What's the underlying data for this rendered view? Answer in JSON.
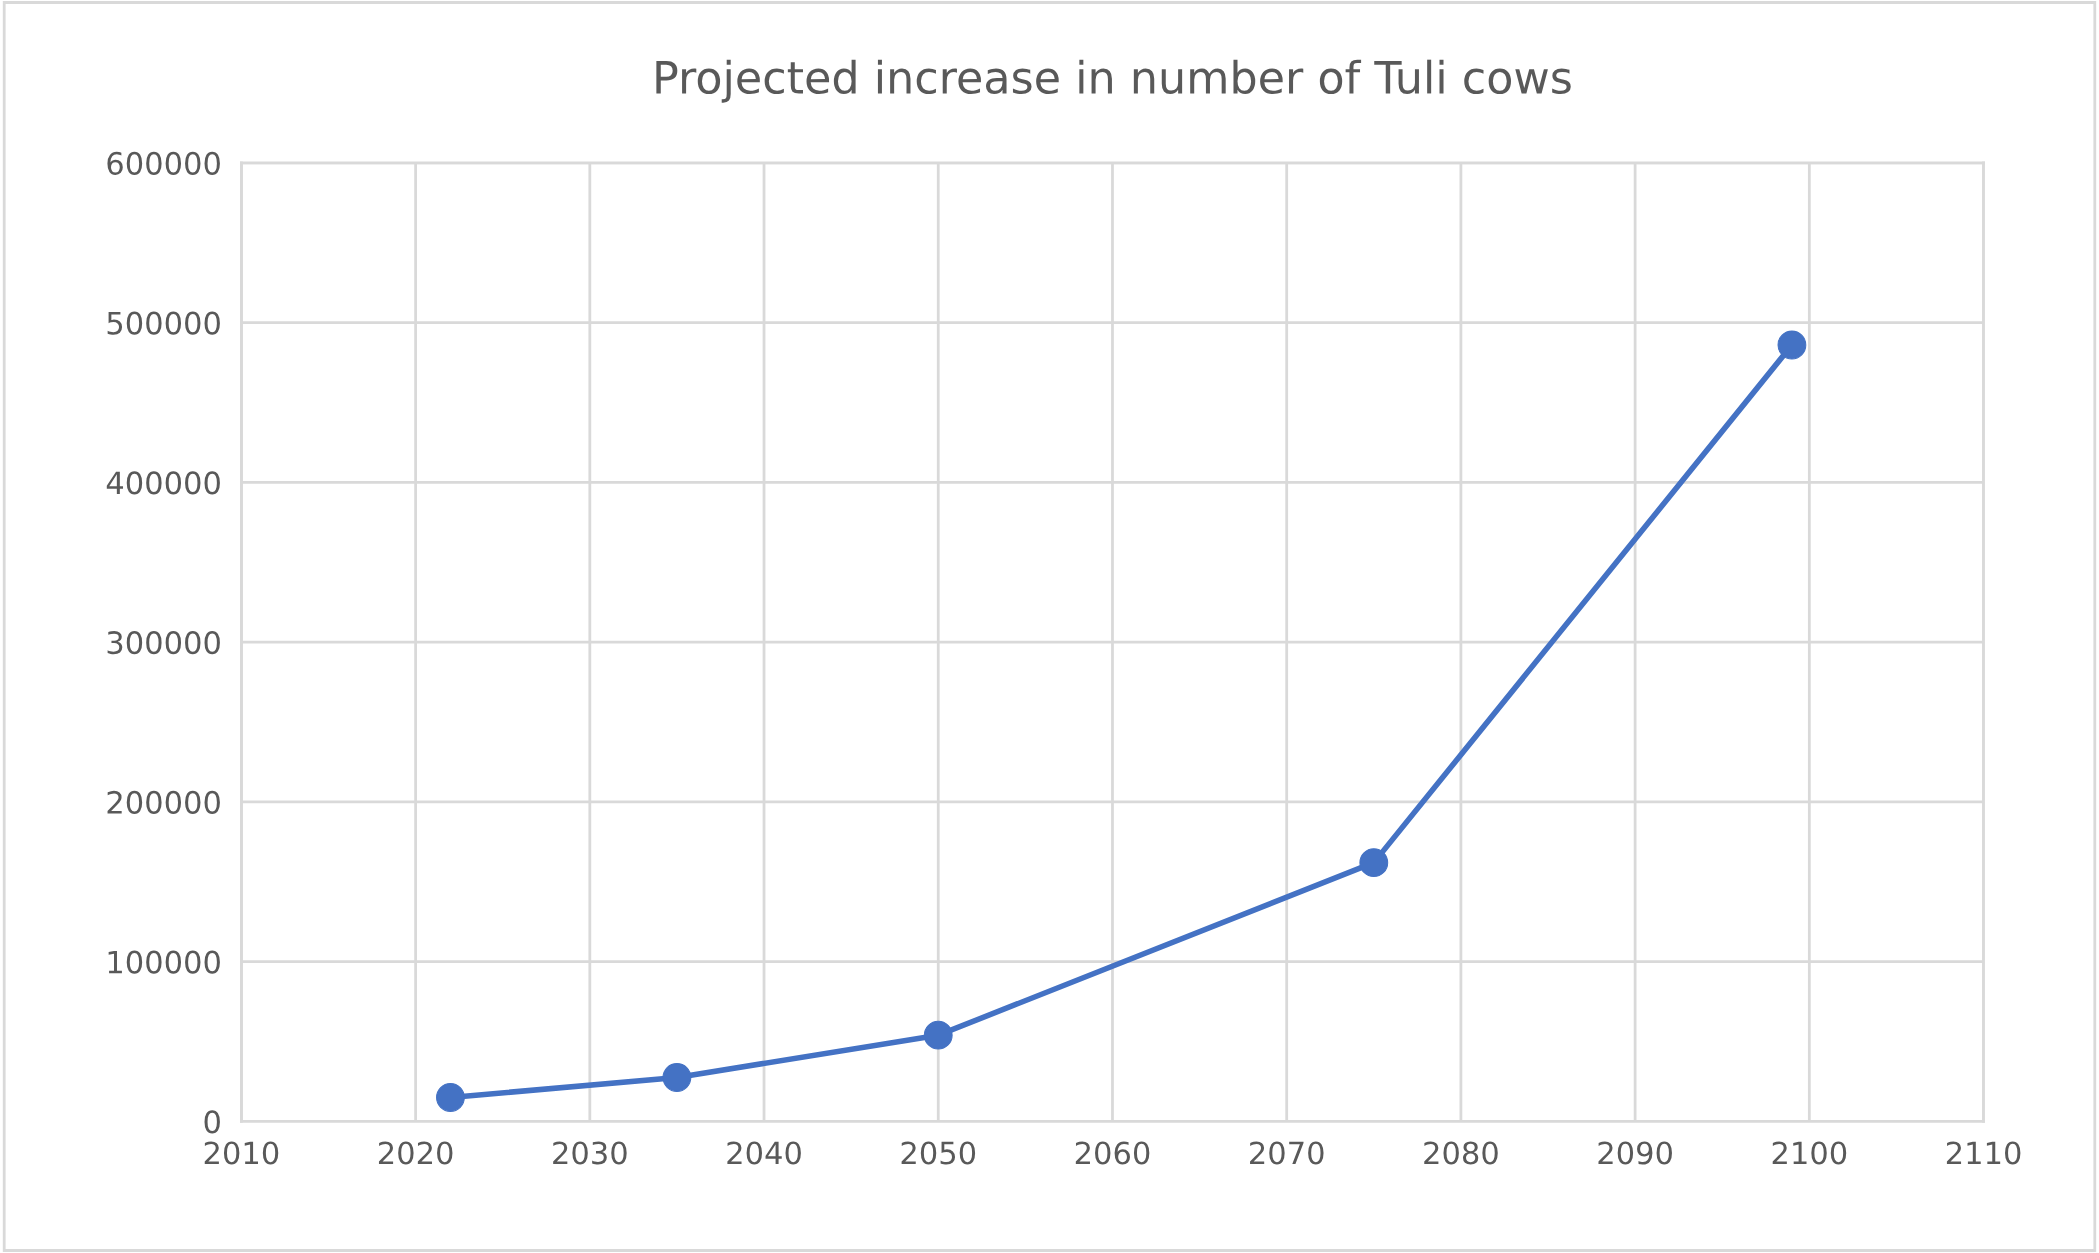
{
  "chart_data": {
    "type": "line",
    "title": "Projected increase in number of Tuli cows",
    "x": [
      2022,
      2035,
      2050,
      2075,
      2099
    ],
    "series": [
      {
        "color": "#4472c4",
        "values": [
          15000,
          27500,
          54000,
          162000,
          486000
        ]
      }
    ],
    "xlim": [
      2010,
      2110
    ],
    "xticks": [
      2010,
      2020,
      2030,
      2040,
      2050,
      2060,
      2070,
      2080,
      2090,
      2100,
      2110
    ],
    "ylim": [
      0,
      600000
    ],
    "yticks": [
      0,
      100000,
      200000,
      300000,
      400000,
      500000,
      600000
    ],
    "grid": true,
    "marker": "circle",
    "line_style": "solid"
  }
}
